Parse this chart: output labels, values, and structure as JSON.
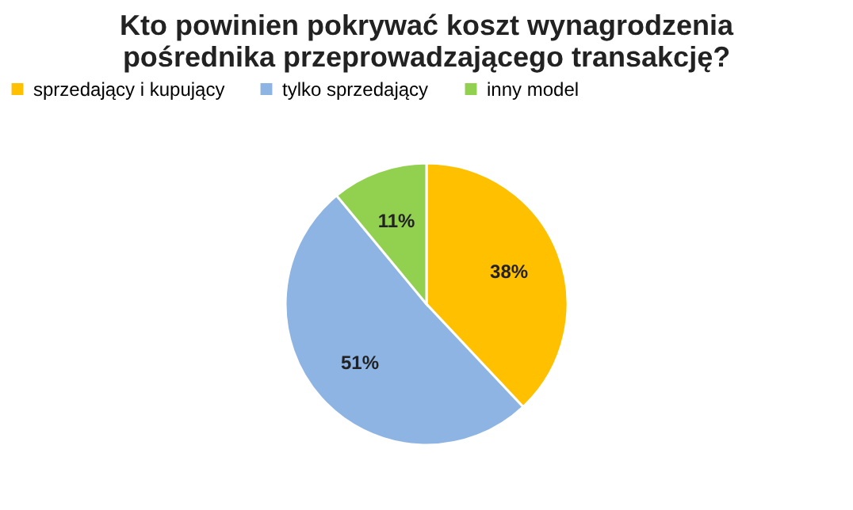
{
  "chart_data": {
    "type": "pie",
    "title": "Kto powinien pokrywać koszt wynagrodzenia\npośrednika przeprowadzającego transakcję?",
    "categories": [
      "sprzedający i kupujący",
      "tylko sprzedający",
      "inny model"
    ],
    "values": [
      38,
      51,
      11
    ],
    "colors": [
      "#ffc000",
      "#8eb4e3",
      "#92d050"
    ],
    "value_labels": [
      "38%",
      "51%",
      "11%"
    ],
    "legend": "top"
  }
}
